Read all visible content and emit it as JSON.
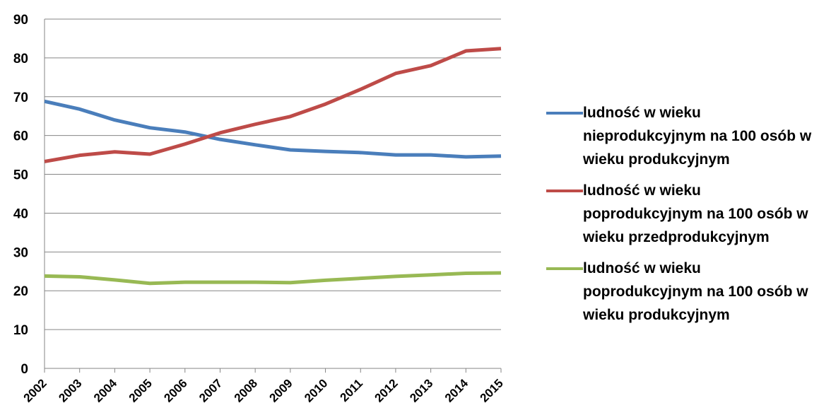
{
  "chart_data": {
    "type": "line",
    "categories": [
      "2002",
      "2003",
      "2004",
      "2005",
      "2006",
      "2007",
      "2008",
      "2009",
      "2010",
      "2011",
      "2012",
      "2013",
      "2014",
      "2015"
    ],
    "series": [
      {
        "name": "ludność w wieku nieprodukcyjnym na 100 osób w wieku produkcyjnym",
        "color": "#4a7ebb",
        "values": [
          68.8,
          66.8,
          64,
          62,
          60.9,
          59,
          57.6,
          56.3,
          55.9,
          55.6,
          55,
          55,
          54.5,
          54.7
        ]
      },
      {
        "name": "ludność w wieku poprodukcyjnym na 100 osób w wieku przedprodukcyjnym",
        "color": "#be4b48",
        "values": [
          53.3,
          54.9,
          55.8,
          55.2,
          57.8,
          60.7,
          62.9,
          64.9,
          68.1,
          71.9,
          76,
          78,
          81.8,
          82.4
        ]
      },
      {
        "name": "ludność w wieku poprodukcyjnym na 100 osób w wieku produkcyjnym",
        "color": "#98b954",
        "values": [
          23.8,
          23.6,
          22.8,
          21.9,
          22.2,
          22.2,
          22.2,
          22.1,
          22.7,
          23.2,
          23.7,
          24.1,
          24.5,
          24.6
        ]
      }
    ],
    "ylim": [
      0,
      90
    ],
    "yticks": [
      0,
      10,
      20,
      30,
      40,
      50,
      60,
      70,
      80,
      90
    ],
    "grid": true,
    "legend": "right"
  }
}
